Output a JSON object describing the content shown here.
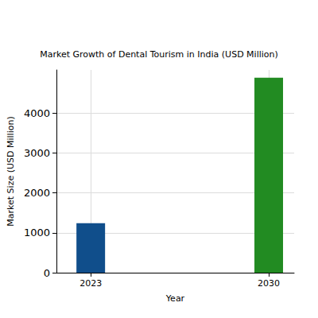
{
  "chart_data": {
    "type": "bar",
    "title": "Market Growth of Dental Tourism in India (USD Million)",
    "x_label": "Year",
    "y_label": "Market Size (USD Million)",
    "x": [
      2023,
      2030
    ],
    "values": [
      1240,
      4880
    ],
    "colors": [
      "#104e8b",
      "#228b22"
    ],
    "xlim": [
      2021.65,
      2031
    ],
    "xticks": [
      2023,
      2030
    ],
    "ylim": [
      0,
      5075
    ],
    "yticks": [
      0,
      1000,
      2000,
      3000,
      4000
    ],
    "grid": true
  }
}
